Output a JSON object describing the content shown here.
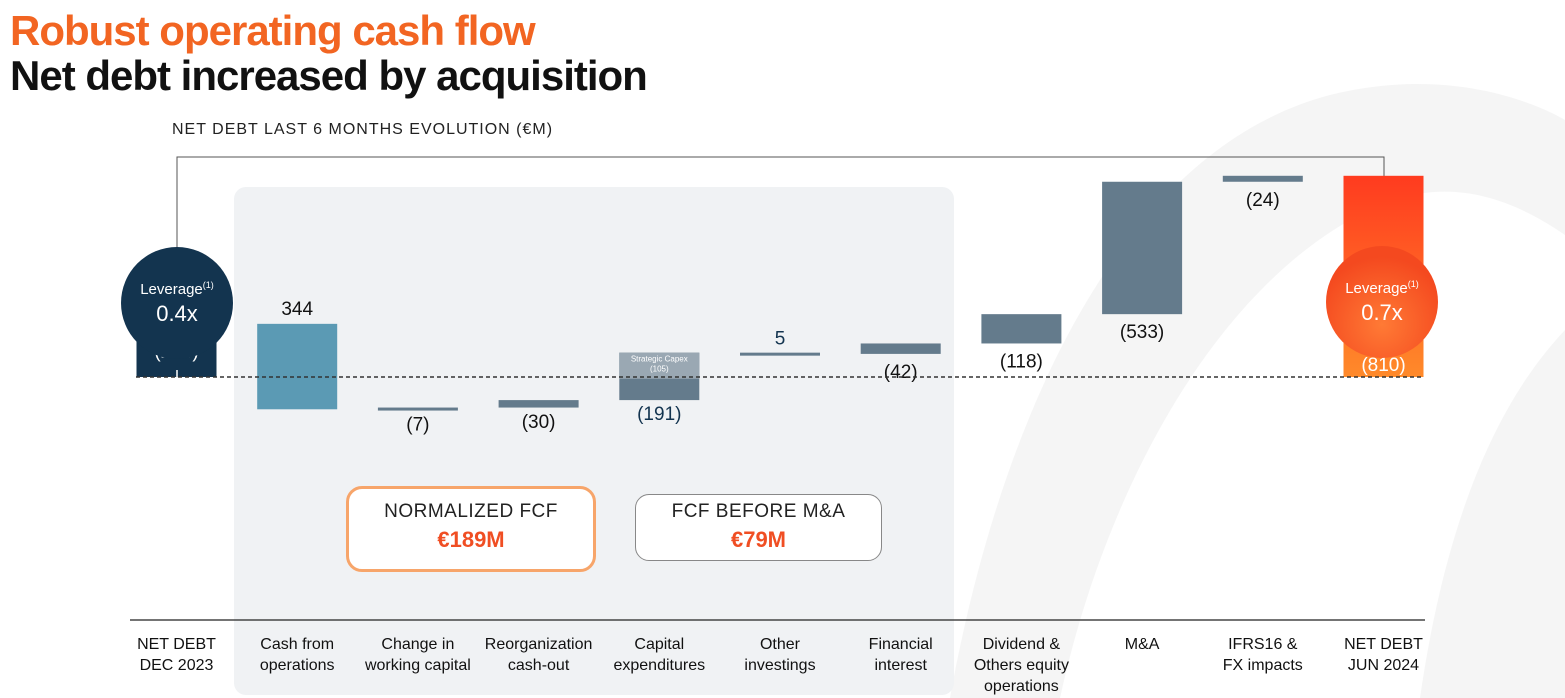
{
  "header": {
    "title_orange": "Robust operating cash flow",
    "title_black": "Net debt increased by acquisition",
    "chart_subtitle": "NET DEBT LAST 6 MONTHS EVOLUTION (€M)"
  },
  "leverage": {
    "start": {
      "label": "Leverage",
      "footnote": "(1)",
      "value": "0.4x"
    },
    "end": {
      "label": "Leverage",
      "footnote": "(1)",
      "value": "0.7x"
    }
  },
  "callouts": {
    "normalized_fcf": {
      "label": "NORMALIZED FCF",
      "value": "€189M"
    },
    "fcf_before_ma": {
      "label": "FCF BEFORE M&A",
      "value": "€79M"
    }
  },
  "colors": {
    "net_debt_start": "#13344f",
    "cash_from_operations": "#5b9ab4",
    "negative_items": "#647b8c",
    "strategic_capex": "#9aa8b3",
    "net_debt_end_top": "#ff3b1f",
    "net_debt_end_bottom": "#ff8a2a",
    "title_orange": "#f26522",
    "highlight_value": "#f04e23"
  },
  "chart_data": {
    "type": "waterfall",
    "title": "NET DEBT LAST 6 MONTHS EVOLUTION (€M)",
    "categories": [
      [
        "NET DEBT",
        "DEC 2023"
      ],
      [
        "Cash from",
        "operations"
      ],
      [
        "Change in",
        "working capital"
      ],
      [
        "Reorganization",
        "cash-out"
      ],
      [
        "Capital",
        "expenditures"
      ],
      [
        "Other",
        "investings"
      ],
      [
        "Financial",
        "interest"
      ],
      [
        "Dividend  &",
        "Others equity",
        "operations"
      ],
      [
        "M&A"
      ],
      [
        "IFRS16 &",
        "FX impacts"
      ],
      [
        "NET DEBT",
        "JUN 2024"
      ]
    ],
    "values": [
      -214,
      344,
      -7,
      -30,
      -191,
      5,
      -42,
      -118,
      -533,
      -24,
      -810
    ],
    "labels": [
      "(214)",
      "344",
      "(7)",
      "(30)",
      "(191)",
      "5",
      "(42)",
      "(118)",
      "(533)",
      "(24)",
      "(810)"
    ],
    "kinds": [
      "total",
      "delta",
      "delta",
      "delta",
      "delta",
      "delta",
      "delta",
      "delta",
      "delta",
      "delta",
      "total"
    ],
    "sub_segment": {
      "category_index": 4,
      "label": "Strategic Capex",
      "value_label": "(105)",
      "value": -105
    },
    "baseline": 0
  }
}
